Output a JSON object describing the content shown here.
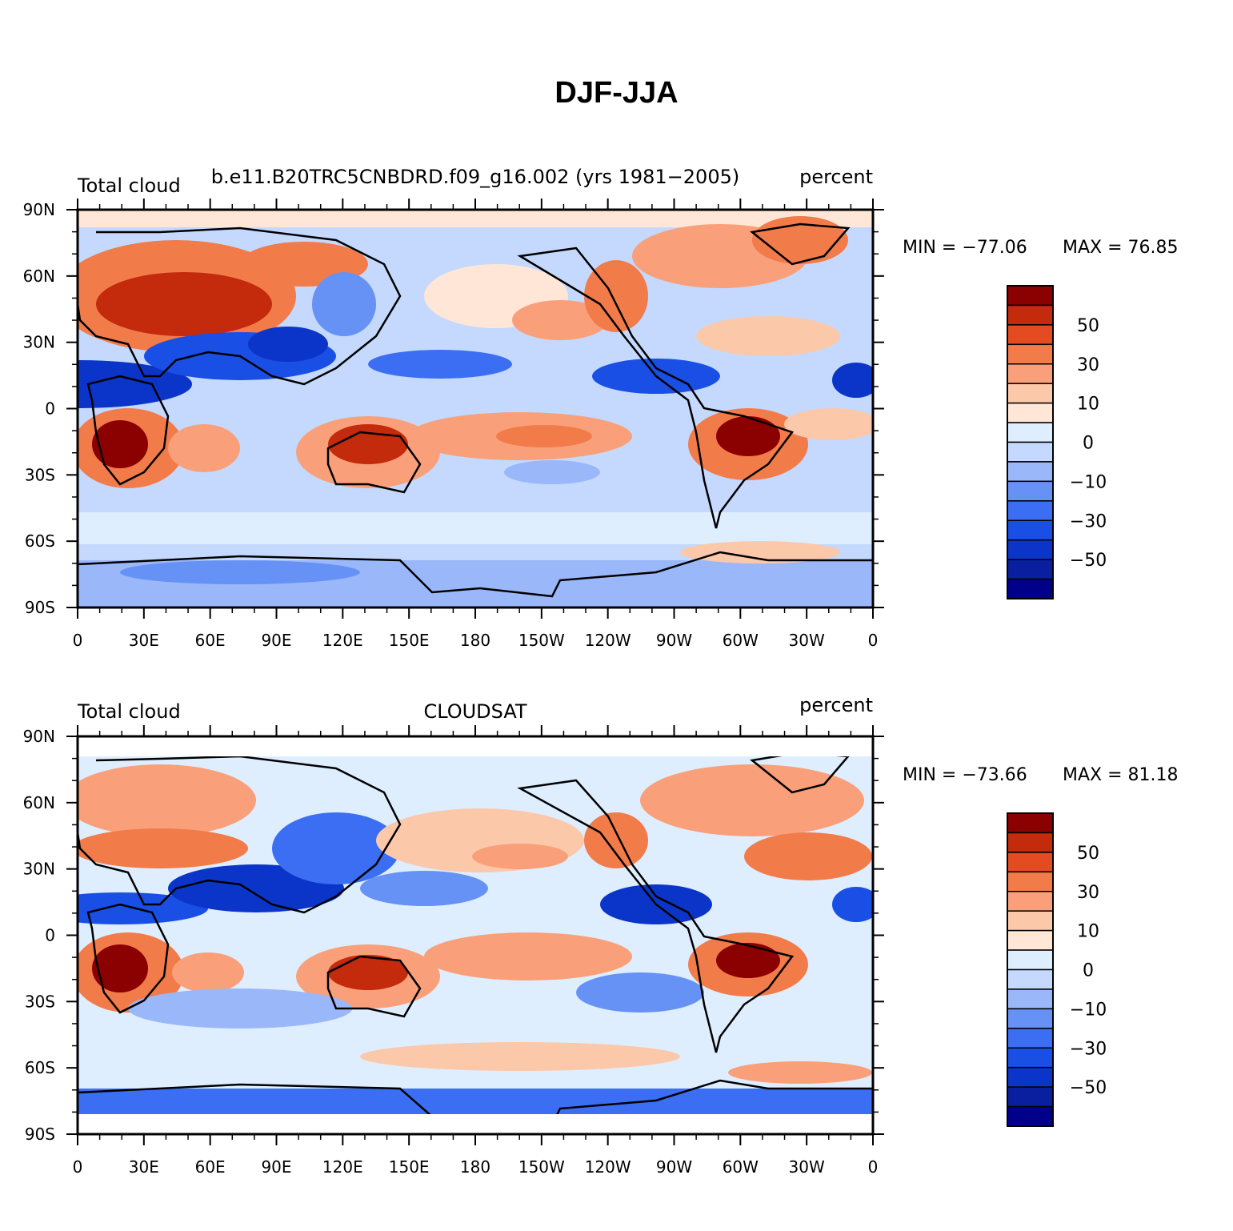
{
  "title": "DJF-JJA",
  "colors": {
    "levels": [
      "#00008b",
      "#0a1fa0",
      "#0b35c8",
      "#1a4fe6",
      "#3b6ef2",
      "#6691f5",
      "#9ab7fa",
      "#c4d9fd",
      "#deeeff",
      "#ffe6d6",
      "#fcc8aa",
      "#f9a07a",
      "#f27b4a",
      "#e44b20",
      "#c42a0c",
      "#8b0000"
    ],
    "land_outline": "#000000",
    "frame": "#000000"
  },
  "colorbar_labels": [
    "50",
    "30",
    "10",
    "0",
    "−10",
    "−30",
    "−50"
  ],
  "x_ticks": [
    "0",
    "30E",
    "60E",
    "90E",
    "120E",
    "150E",
    "180",
    "150W",
    "120W",
    "90W",
    "60W",
    "30W",
    "0"
  ],
  "y_ticks": [
    "90N",
    "60N",
    "30N",
    "0",
    "30S",
    "60S",
    "90S"
  ],
  "panels": [
    {
      "left_label": "Total cloud",
      "center_label": "b.e11.B20TRC5CNBDRD.f09_g16.002 (yrs 1981−2005)",
      "right_label": "percent",
      "min_text": "MIN = −77.06",
      "max_text": "MAX =  76.85"
    },
    {
      "left_label": "Total cloud",
      "center_label": "CLOUDSAT",
      "right_label": "percent",
      "min_text": "MIN = −73.66",
      "max_text": "MAX =  81.18"
    }
  ]
}
